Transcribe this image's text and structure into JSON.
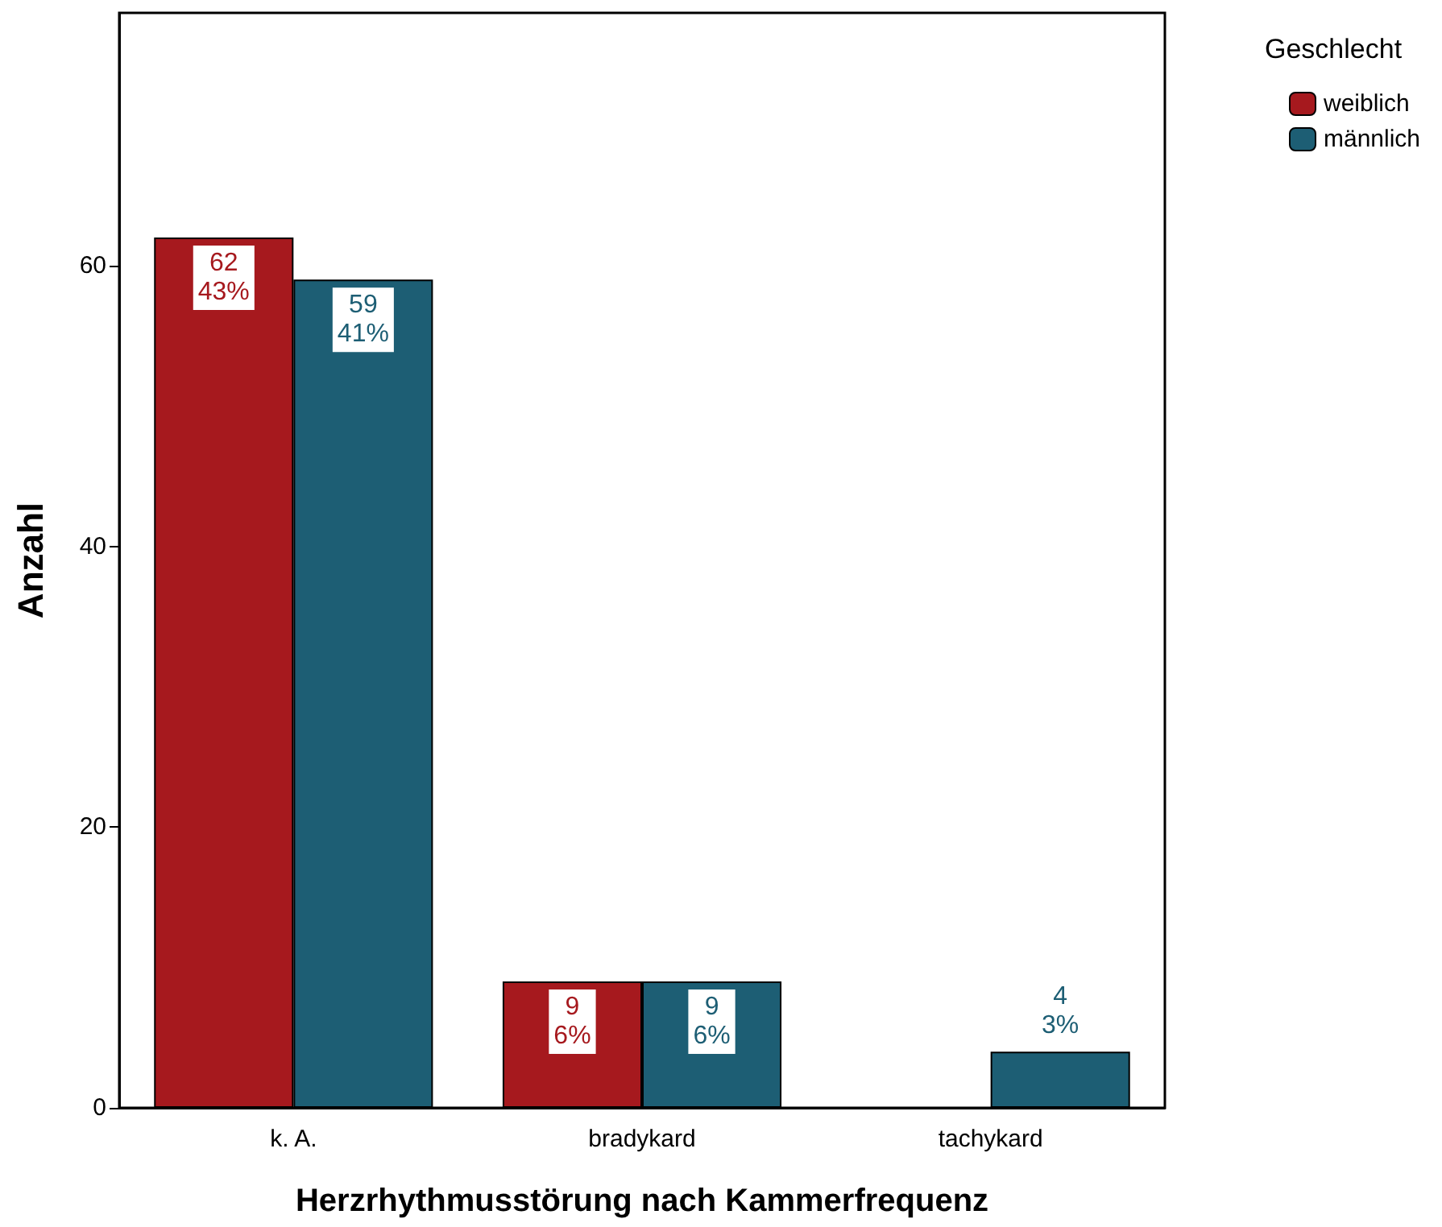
{
  "chart_data": {
    "type": "bar",
    "xlabel": "Herzrhythmusstörung nach Kammerfrequenz",
    "ylabel": "Anzahl",
    "legend_title": "Geschlecht",
    "categories": [
      "k. A.",
      "bradykard",
      "tachykard"
    ],
    "series": [
      {
        "name": "weiblich",
        "color": "#a6191e",
        "values": [
          62,
          9,
          null
        ],
        "value_labels": [
          "62\n43%",
          "9\n6%",
          null
        ]
      },
      {
        "name": "männlich",
        "color": "#1d5e74",
        "values": [
          59,
          9,
          4
        ],
        "value_labels": [
          "59\n41%",
          "9\n6%",
          "4\n3%"
        ]
      }
    ],
    "ylim": [
      0,
      78
    ],
    "yticks": [
      0,
      20,
      40,
      60
    ],
    "grid": false,
    "legend": "top right"
  }
}
